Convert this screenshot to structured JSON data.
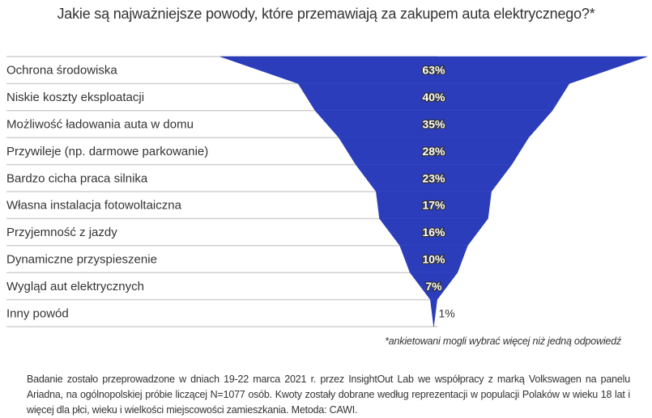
{
  "chart_data": {
    "type": "funnel",
    "title": "Jakie są najważniejsze powody, które przemawiają za zakupem auta elektrycznego?*",
    "categories": [
      "Ochrona środowiska",
      "Niskie koszty eksploatacji",
      "Możliwość ładowania auta w domu",
      "Przywileje (np. darmowe parkowanie)",
      "Bardzo cicha praca silnika",
      "Własna instalacja fotowoltaiczna",
      "Przyjemność z jazdy",
      "Dynamiczne przyspieszenie",
      "Wygląd aut elektrycznych",
      "Inny powód"
    ],
    "values": [
      63,
      40,
      35,
      28,
      23,
      17,
      16,
      10,
      7,
      1
    ],
    "value_labels": [
      "63%",
      "40%",
      "35%",
      "28%",
      "23%",
      "17%",
      "16%",
      "10%",
      "7%",
      "1%"
    ],
    "unit": "%",
    "color": "#2b3dbb",
    "grid": true
  },
  "footnote": "*ankietowani mogli wybrać więcej niż jedną odpowiedź",
  "methodology": "Badanie zostało przeprowadzone w dniach 19-22 marca 2021 r. przez InsightOut Lab we współpracy z marką Volkswagen na panelu Ariadna, na ogólnopolskiej próbie liczącej N=1077 osób. Kwoty zostały dobrane według reprezentacji w populacji Polaków w wieku 18 lat i więcej dla płci, wieku i wielkości miejscowości zamieszkania. Metoda: CAWI."
}
